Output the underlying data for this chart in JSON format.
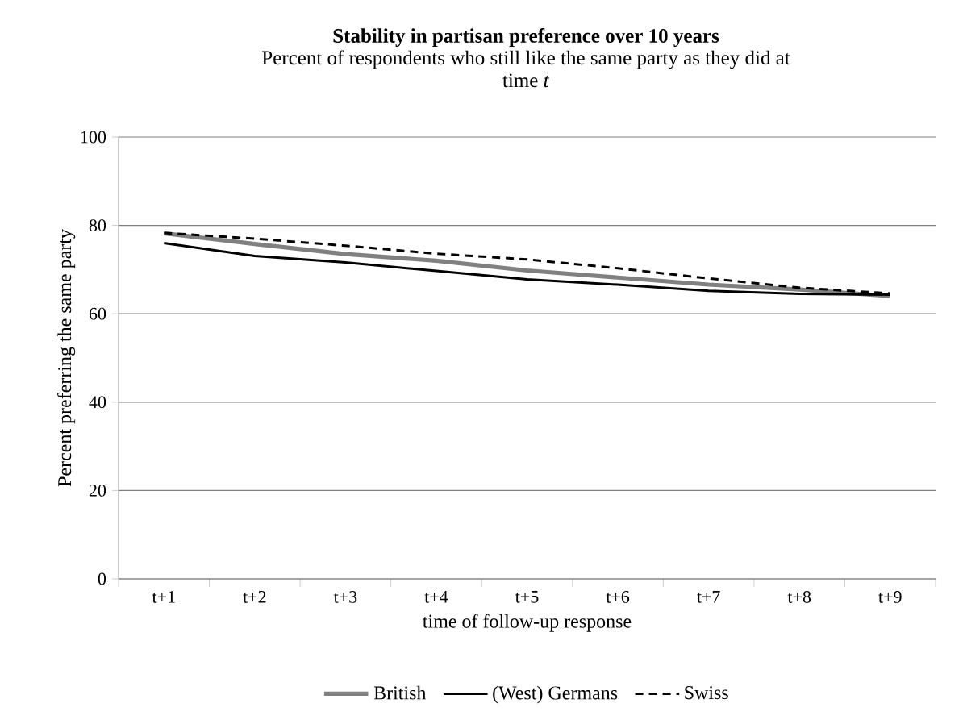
{
  "chart_data": {
    "type": "line",
    "title": "**Stability in partisan preference over 10 years**",
    "subtitle": "Percent of respondents who still like the same party as they did at time *t*",
    "xlabel": "time of follow-up response",
    "ylabel": "Percent preferring the same party",
    "categories": [
      "t+1",
      "t+2",
      "t+3",
      "t+4",
      "t+5",
      "t+6",
      "t+7",
      "t+8",
      "t+9"
    ],
    "series": [
      {
        "name": "British",
        "color": "#808080",
        "line_style": "solid",
        "values": [
          78.2,
          75.8,
          73.5,
          72,
          69.8,
          68.2,
          66.6,
          65.5,
          64
        ]
      },
      {
        "name": "(West) Germans",
        "color": "#000000",
        "line_style": "solid",
        "values": [
          76,
          73.1,
          71.6,
          69.7,
          67.8,
          66.6,
          65.2,
          64.5,
          64.3
        ]
      },
      {
        "name": "Swiss",
        "color": "#000000",
        "line_style": "dashed",
        "values": [
          78.3,
          77,
          75.4,
          73.6,
          72.3,
          70.3,
          68,
          65.9,
          64.6
        ]
      }
    ],
    "ylim": [
      0,
      100
    ],
    "yticks": [
      0,
      20,
      40,
      60,
      80,
      100
    ],
    "grid": "y",
    "legend": "bottom",
    "marker": "none"
  }
}
